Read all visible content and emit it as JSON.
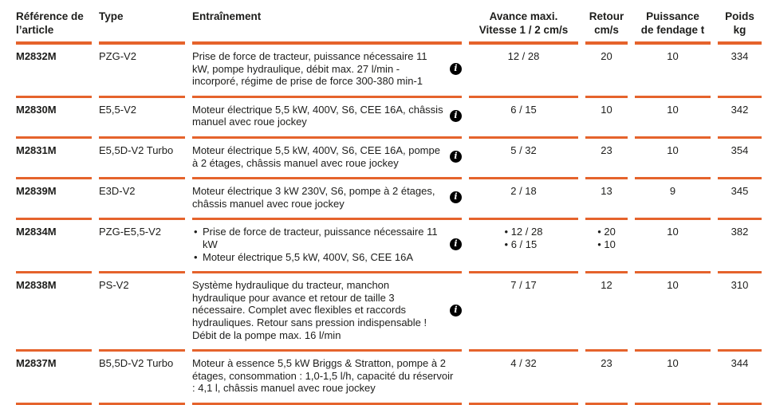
{
  "theme": {
    "accent": "#e5632c",
    "text_color": "#1d1d1b"
  },
  "icons": {
    "info_glyph": "i"
  },
  "table": {
    "headers": [
      "Référence de\nl’article",
      "Type",
      "Entraînement",
      "Avance maxi.\nVitesse 1 / 2 cm/s",
      "Retour\ncm/s",
      "Puissance\nde fendage t",
      "Poids\nkg"
    ],
    "rows": [
      {
        "ref": "M2832M",
        "type": "PZG-V2",
        "drive": "Prise de force de tracteur, puissance nécessaire 11 kW, pompe hydraulique, débit max. 27 l/min - incorporé, régime de prise de force 300-380 min-1",
        "info": true,
        "advance": "12 / 28",
        "return": "20",
        "power": "10",
        "weight": "334"
      },
      {
        "ref": "M2830M",
        "type": "E5,5-V2",
        "drive": "Moteur électrique 5,5 kW, 400V, S6, CEE 16A, châssis manuel avec roue jockey",
        "info": true,
        "advance": "6 / 15",
        "return": "10",
        "power": "10",
        "weight": "342"
      },
      {
        "ref": "M2831M",
        "type": "E5,5D-V2 Turbo",
        "drive": "Moteur électrique 5,5 kW, 400V, S6, CEE 16A, pompe à 2 étages, châssis manuel avec roue jockey",
        "info": true,
        "advance": "5 / 32",
        "return": "23",
        "power": "10",
        "weight": "354"
      },
      {
        "ref": "M2839M",
        "type": "E3D-V2",
        "drive": "Moteur électrique 3 kW 230V, S6, pompe à 2 étages, châssis manuel avec roue jockey",
        "info": true,
        "advance": "2 / 18",
        "return": "13",
        "power": "9",
        "weight": "345"
      },
      {
        "ref": "M2834M",
        "type": "PZG-E5,5-V2",
        "drive": [
          "Prise de force de tracteur, puissance nécessaire 11 kW",
          "Moteur électrique 5,5 kW, 400V, S6, CEE 16A"
        ],
        "info": true,
        "advance": "• 12 / 28\n• 6 / 15",
        "return": "• 20\n• 10",
        "power": "10",
        "weight": "382"
      },
      {
        "ref": "M2838M",
        "type": "PS-V2",
        "drive": "Système hydraulique du tracteur, manchon hydraulique pour avance et retour de taille 3 nécessaire. Complet avec flexibles et raccords hydrauliques. Retour sans pression indispensable ! Débit de la pompe max. 16 l/min",
        "info": true,
        "advance": "7 / 17",
        "return": "12",
        "power": "10",
        "weight": "310"
      },
      {
        "ref": "M2837M",
        "type": "B5,5D-V2 Turbo",
        "drive": "Moteur à essence 5,5 kW Briggs & Stratton, pompe à 2 étages, consommation : 1,0-1,5 l/h, capacité du réservoir : 4,1 l, châssis manuel avec roue jockey",
        "info": false,
        "advance": "4 / 32",
        "return": "23",
        "power": "10",
        "weight": "344"
      }
    ]
  }
}
